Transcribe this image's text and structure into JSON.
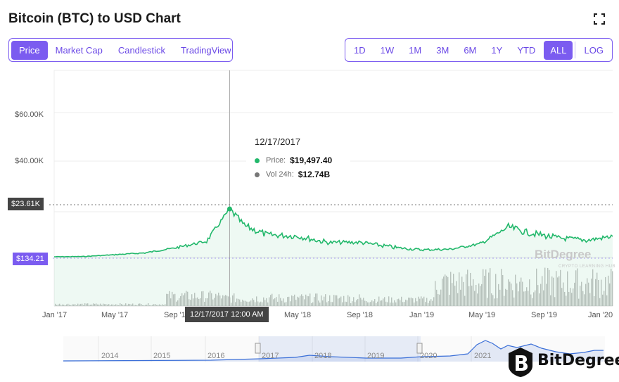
{
  "title": "Bitcoin (BTC) to USD Chart",
  "chart_tabs": [
    {
      "label": "Price",
      "active": true
    },
    {
      "label": "Market Cap",
      "active": false
    },
    {
      "label": "Candlestick",
      "active": false
    },
    {
      "label": "TradingView",
      "active": false
    }
  ],
  "ranges": [
    {
      "label": "1D",
      "active": false
    },
    {
      "label": "1W",
      "active": false
    },
    {
      "label": "1M",
      "active": false
    },
    {
      "label": "3M",
      "active": false
    },
    {
      "label": "6M",
      "active": false
    },
    {
      "label": "1Y",
      "active": false
    },
    {
      "label": "YTD",
      "active": false
    },
    {
      "label": "ALL",
      "active": true
    }
  ],
  "log_label": "LOG",
  "tooltip": {
    "date": "12/17/2017",
    "price_label": "Price:",
    "price_value": "$19,497.40",
    "vol_label": "Vol 24h:",
    "vol_value": "$12.74B"
  },
  "y_labels": [
    "$60.00K",
    "$40.00K"
  ],
  "crosshair_badge": "$23.61K",
  "current_badge": "$134.21",
  "x_labels": [
    "Jan '17",
    "May '17",
    "Sep '1",
    "Jan '18",
    "May '18",
    "Sep '18",
    "Jan '19",
    "May '19",
    "Sep '19",
    "Jan '20"
  ],
  "x_badge": "12/17/2017 12:00 AM",
  "navigator_years": [
    "2014",
    "2015",
    "2016",
    "2017",
    "2018",
    "2019",
    "2020",
    "2021"
  ],
  "watermark": "BitDegree",
  "watermark_sub": "CRYPTO LEARNING HUB",
  "logo_text": "BitDegree",
  "colors": {
    "accent": "#7b5cf0",
    "price": "#22b86b",
    "volume": "#bdbdbd",
    "navigator": "#3a6fd8"
  },
  "chart_data": {
    "type": "line",
    "x": [
      "2017-01-01",
      "2017-03-01",
      "2017-05-01",
      "2017-07-01",
      "2017-09-01",
      "2017-11-01",
      "2017-12-17",
      "2018-01-15",
      "2018-03-01",
      "2018-05-01",
      "2018-07-01",
      "2018-09-01",
      "2018-11-15",
      "2019-01-01",
      "2019-03-01",
      "2019-05-01",
      "2019-06-26",
      "2019-08-01",
      "2019-10-01",
      "2019-12-01",
      "2020-01-20"
    ],
    "series": [
      {
        "values": [
          1000,
          1100,
          1800,
          2500,
          4500,
          7000,
          19497,
          13000,
          9500,
          9000,
          6500,
          6600,
          4500,
          3700,
          3900,
          6000,
          12500,
          10500,
          8300,
          7400,
          8900
        ]
      }
    ],
    "y_axis_ticks": [
      40000,
      60000
    ],
    "crosshair_date": "12/17/2017",
    "crosshair_price": 19497.4,
    "crosshair_volume": "12.74B"
  }
}
